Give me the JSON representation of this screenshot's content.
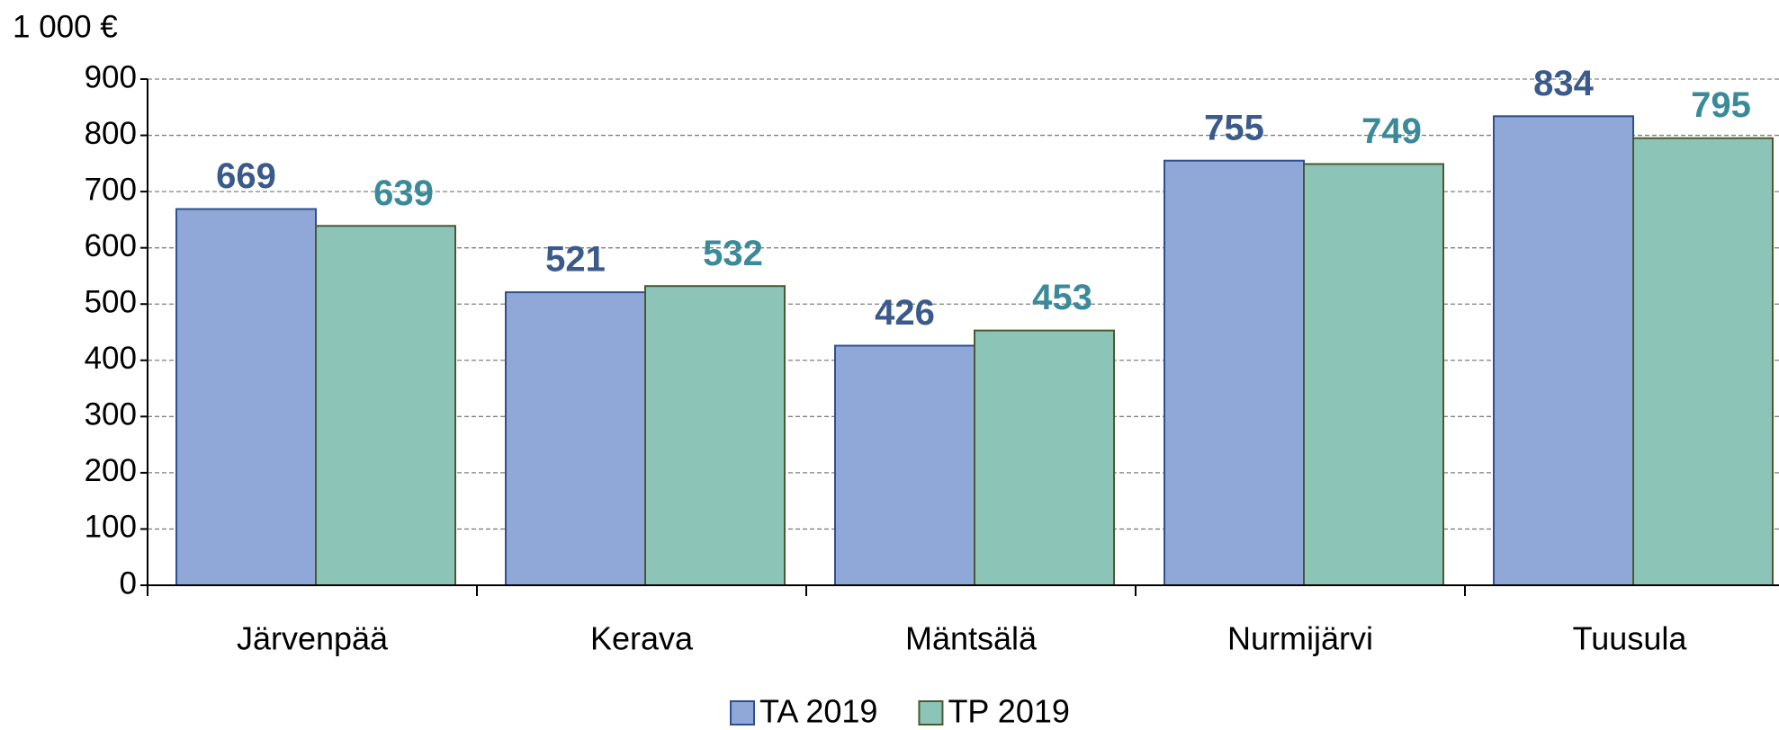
{
  "chart_data": {
    "type": "bar",
    "y_label": "1 000 €",
    "categories": [
      "Järvenpää",
      "Kerava",
      "Mäntsälä",
      "Nurmijärvi",
      "Tuusula"
    ],
    "series": [
      {
        "name": "TA 2019",
        "color": "#8fa8d8",
        "values": [
          669,
          521,
          426,
          755,
          834
        ]
      },
      {
        "name": "TP 2019",
        "color": "#8cc4b8",
        "values": [
          639,
          532,
          453,
          749,
          795
        ]
      }
    ],
    "ylim": [
      0,
      900
    ],
    "yticks": [
      0,
      100,
      200,
      300,
      400,
      500,
      600,
      700,
      800,
      900
    ],
    "grid": true,
    "legend": "bottom"
  }
}
